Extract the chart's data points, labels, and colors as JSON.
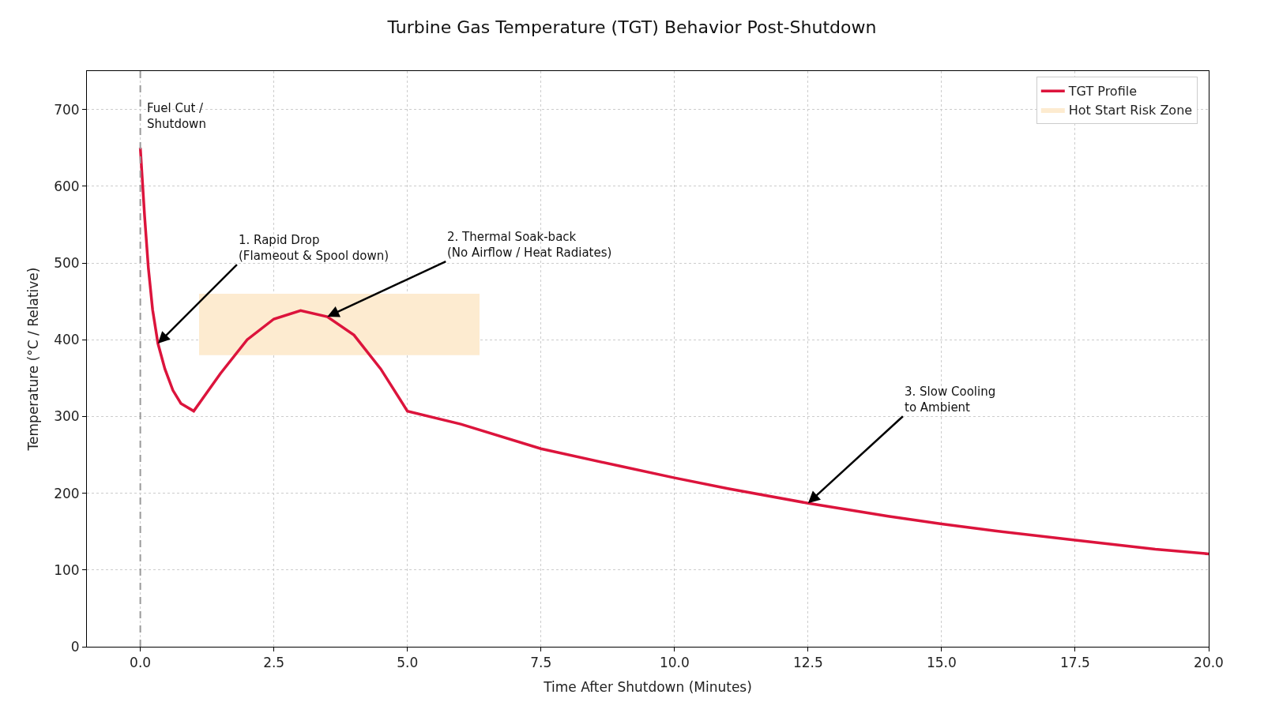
{
  "chart_data": {
    "type": "line",
    "title": "Turbine Gas Temperature (TGT) Behavior Post-Shutdown",
    "xlabel": "Time After Shutdown (Minutes)",
    "ylabel": "Temperature (°C / Relative)",
    "series": [
      {
        "name": "TGT Profile",
        "color": "#dc143c",
        "x": [
          0,
          0.08,
          0.15,
          0.23,
          0.33,
          0.46,
          0.61,
          0.76,
          1.0,
          1.5,
          2.0,
          2.5,
          3.0,
          3.5,
          4.0,
          4.5,
          5.0,
          6.0,
          7.5,
          9.0,
          10.0,
          11.0,
          12.5,
          14.0,
          15.0,
          16.0,
          17.5,
          19.0,
          20.0
        ],
        "values": [
          650,
          561,
          494,
          439,
          395,
          362,
          334,
          317,
          307,
          356,
          400,
          427,
          438,
          430,
          406,
          362,
          307,
          290,
          258,
          235,
          220,
          206,
          187,
          170,
          160,
          151,
          139,
          127,
          121
        ]
      },
      {
        "name": "Hot Start Risk Zone",
        "color": "#fdebd0",
        "type": "area",
        "x": [
          1.1,
          6.35
        ],
        "values": [
          null,
          null
        ],
        "lower": [
          380,
          380
        ],
        "upper": [
          460,
          460
        ]
      }
    ],
    "xlim": [
      -1,
      20
    ],
    "xticks": [
      {
        "value": 0,
        "label": "0.0"
      },
      2.5,
      {
        "value": 5,
        "label": "5.0"
      },
      7.5,
      {
        "value": 10,
        "label": "10.0"
      },
      12.5,
      {
        "value": 15,
        "label": "15.0"
      },
      17.5,
      {
        "value": 20,
        "label": "20.0"
      }
    ],
    "ylim": [
      0,
      750
    ],
    "yticks": [
      0,
      100,
      200,
      300,
      400,
      500,
      600,
      700
    ],
    "ref_lines": [
      {
        "axis": "x",
        "value": 0,
        "label": "Fuel Cut /\nShutdown",
        "color": "#999999",
        "line_style": "dashed"
      }
    ],
    "annotations": [
      {
        "text": "1. Rapid Drop\n(Flameout & Spool down)",
        "x": 0.33,
        "y": 395
      },
      {
        "text": "2. Thermal Soak-back\n(No Airflow / Heat Radiates)",
        "x": 3.5,
        "y": 430
      },
      {
        "text": "3. Slow Cooling\nto Ambient",
        "x": 12.5,
        "y": 187
      }
    ],
    "grid": true,
    "legend": "top right",
    "marker": "none",
    "line_style": "solid"
  }
}
